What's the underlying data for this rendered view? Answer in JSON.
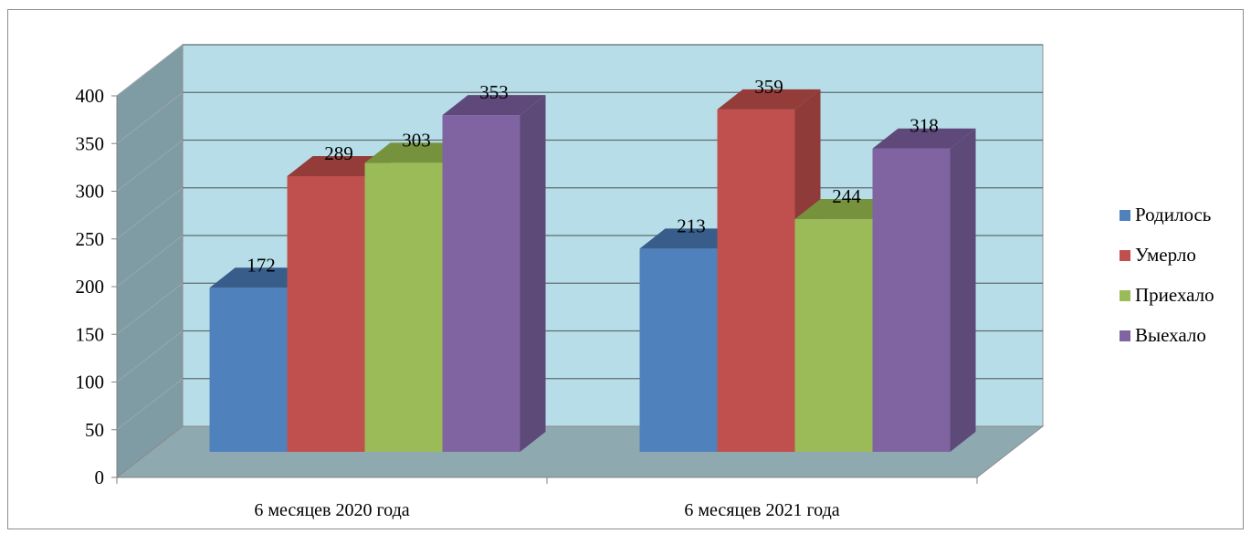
{
  "chart_data": {
    "type": "bar",
    "categories": [
      "6 месяцев 2020 года",
      "6 месяцев 2021 года"
    ],
    "series": [
      {
        "name": "Родилось",
        "values": [
          172,
          213
        ],
        "color": "#4F81BD",
        "side": "#3A6190",
        "top": "#385D8A"
      },
      {
        "name": "Умерло",
        "values": [
          289,
          359
        ],
        "color": "#C0504D",
        "side": "#8E3B39",
        "top": "#943C39"
      },
      {
        "name": "Приехало",
        "values": [
          303,
          244
        ],
        "color": "#9BBB59",
        "side": "#728A42",
        "top": "#76923C"
      },
      {
        "name": "Выехало",
        "values": [
          353,
          318
        ],
        "color": "#8064A2",
        "side": "#5E4A78",
        "top": "#5F497A"
      }
    ],
    "ylim": [
      0,
      400
    ],
    "yticks": [
      0,
      50,
      100,
      150,
      200,
      250,
      300,
      350,
      400
    ],
    "grid": true,
    "legend": "right",
    "wall_color": "#B7DEE8",
    "side_wall_color": "#7F9BA3",
    "floor_color": "#8FA9B1"
  }
}
